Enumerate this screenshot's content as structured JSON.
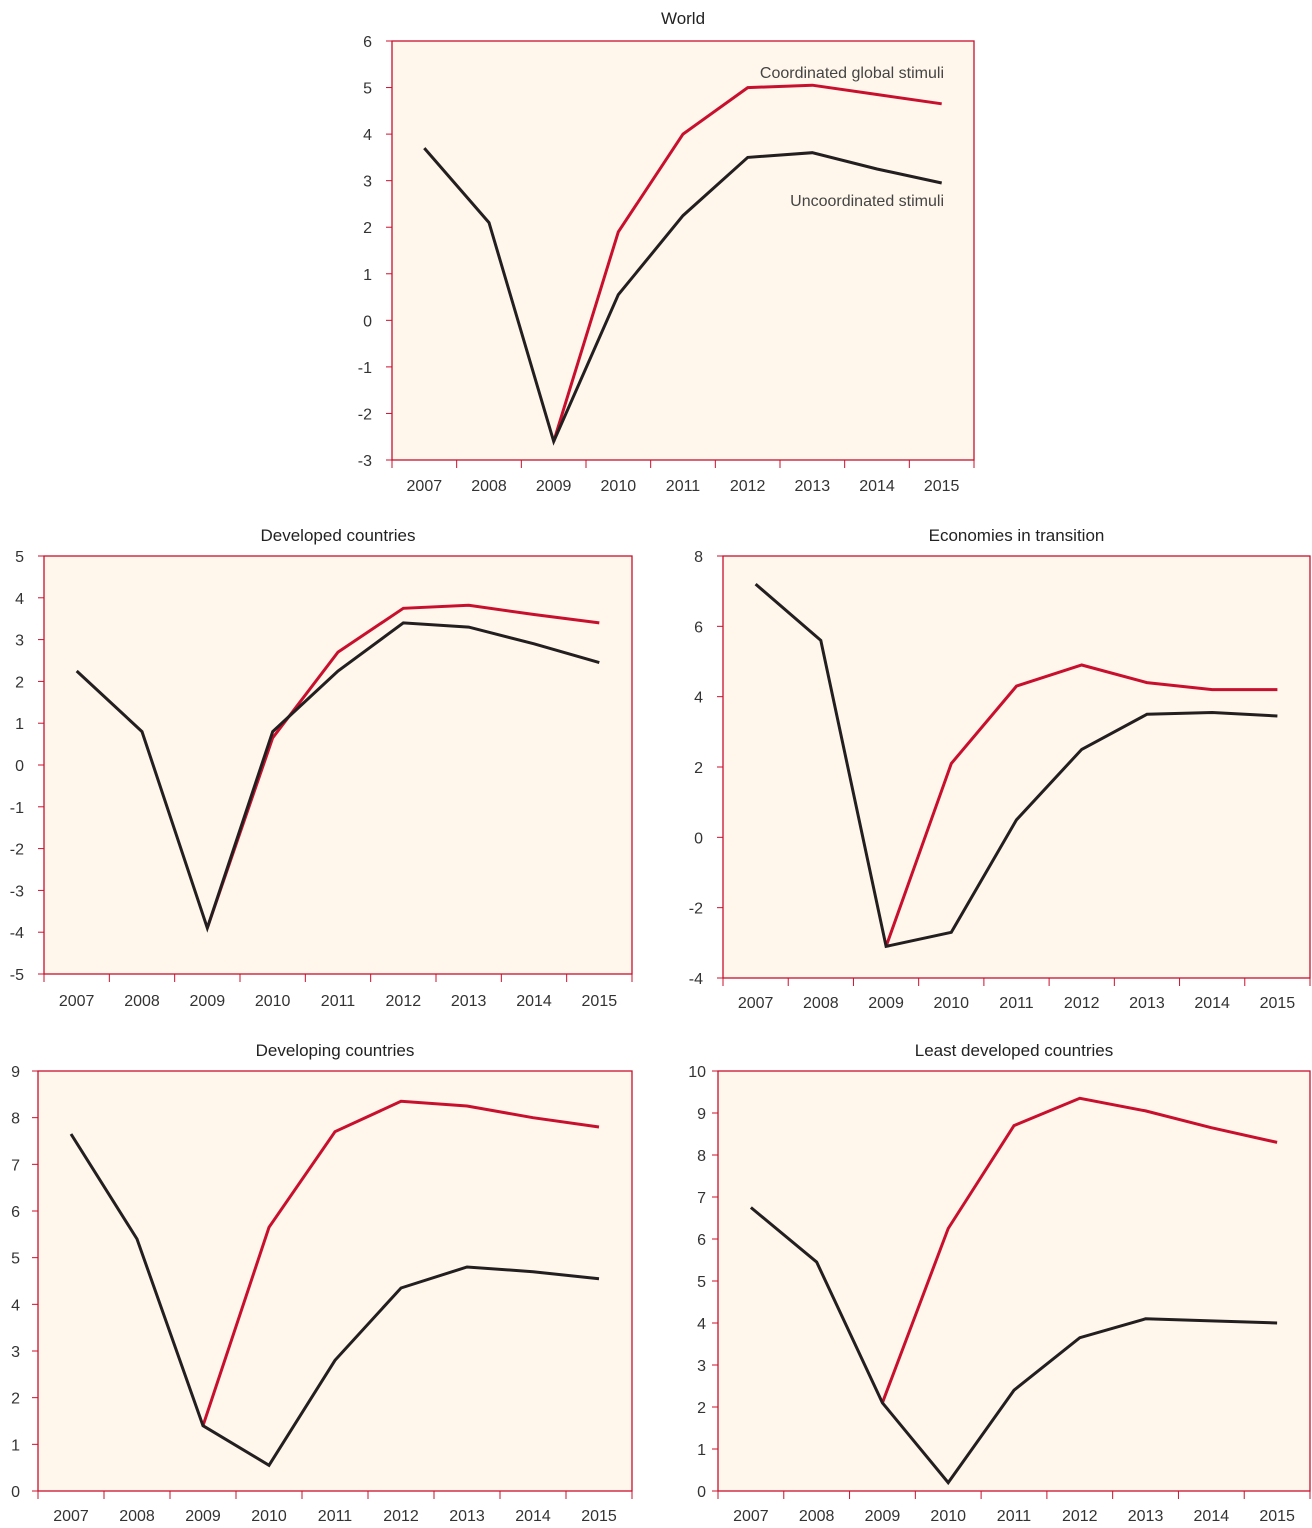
{
  "colors": {
    "panel_background": "#fff7ec",
    "frame": "#c8102e",
    "coordinated": "#c8102e",
    "uncoordinated": "#231f20"
  },
  "chart_data": [
    {
      "type": "line",
      "title": "World",
      "x": [
        "2007",
        "2008",
        "2009",
        "2010",
        "2011",
        "2012",
        "2013",
        "2014",
        "2015"
      ],
      "ylim": [
        -3,
        6
      ],
      "yticks": [
        "6",
        "5",
        "4",
        "3",
        "2",
        "1",
        "0",
        "-1",
        "-2",
        "-3"
      ],
      "series": [
        {
          "name": "Coordinated global stimuli",
          "key": "coordinated",
          "values": [
            null,
            null,
            -2.6,
            1.9,
            4.0,
            5.0,
            5.05,
            4.85,
            4.65
          ]
        },
        {
          "name": "Uncoordinated stimuli",
          "key": "uncoordinated",
          "values": [
            3.7,
            2.1,
            -2.6,
            0.55,
            2.25,
            3.5,
            3.6,
            3.25,
            2.95
          ]
        }
      ]
    },
    {
      "type": "line",
      "title": "Developed countries",
      "x": [
        "2007",
        "2008",
        "2009",
        "2010",
        "2011",
        "2012",
        "2013",
        "2014",
        "2015"
      ],
      "ylim": [
        -5,
        5
      ],
      "yticks": [
        "5",
        "4",
        "3",
        "2",
        "1",
        "0",
        "-1",
        "-2",
        "-3",
        "-4",
        "-5"
      ],
      "series": [
        {
          "key": "coordinated",
          "values": [
            null,
            null,
            -3.9,
            0.65,
            2.7,
            3.75,
            3.82,
            3.6,
            3.4
          ]
        },
        {
          "key": "uncoordinated",
          "values": [
            2.25,
            0.8,
            -3.9,
            0.8,
            2.25,
            3.4,
            3.3,
            2.9,
            2.45
          ]
        }
      ]
    },
    {
      "type": "line",
      "title": "Economies in transition",
      "x": [
        "2007",
        "2008",
        "2009",
        "2010",
        "2011",
        "2012",
        "2013",
        "2014",
        "2015"
      ],
      "ylim": [
        -4,
        8
      ],
      "yticks": [
        "8",
        "6",
        "4",
        "2",
        "0",
        "-2",
        "-4"
      ],
      "series": [
        {
          "key": "coordinated",
          "values": [
            null,
            null,
            -3.1,
            2.1,
            4.3,
            4.9,
            4.4,
            4.2,
            4.2
          ]
        },
        {
          "key": "uncoordinated",
          "values": [
            7.2,
            5.6,
            -3.1,
            -2.7,
            0.5,
            2.5,
            3.5,
            3.55,
            3.45
          ]
        }
      ]
    },
    {
      "type": "line",
      "title": "Developing countries",
      "x": [
        "2007",
        "2008",
        "2009",
        "2010",
        "2011",
        "2012",
        "2013",
        "2014",
        "2015"
      ],
      "ylim": [
        0,
        9
      ],
      "yticks": [
        "9",
        "8",
        "7",
        "6",
        "5",
        "4",
        "3",
        "2",
        "1",
        "0"
      ],
      "series": [
        {
          "key": "coordinated",
          "values": [
            null,
            null,
            1.4,
            5.65,
            7.7,
            8.35,
            8.25,
            8.0,
            7.8
          ]
        },
        {
          "key": "uncoordinated",
          "values": [
            7.65,
            5.4,
            1.4,
            0.55,
            2.8,
            4.35,
            4.8,
            4.7,
            4.55
          ]
        }
      ]
    },
    {
      "type": "line",
      "title": "Least developed countries",
      "x": [
        "2007",
        "2008",
        "2009",
        "2010",
        "2011",
        "2012",
        "2013",
        "2014",
        "2015"
      ],
      "ylim": [
        0,
        10
      ],
      "yticks": [
        "10",
        "9",
        "8",
        "7",
        "6",
        "5",
        "4",
        "3",
        "2",
        "1",
        "0"
      ],
      "series": [
        {
          "key": "coordinated",
          "values": [
            null,
            null,
            2.1,
            6.25,
            8.7,
            9.35,
            9.05,
            8.65,
            8.3
          ]
        },
        {
          "key": "uncoordinated",
          "values": [
            6.75,
            5.45,
            2.1,
            0.2,
            2.4,
            3.65,
            4.1,
            4.05,
            4.0
          ]
        }
      ]
    }
  ]
}
